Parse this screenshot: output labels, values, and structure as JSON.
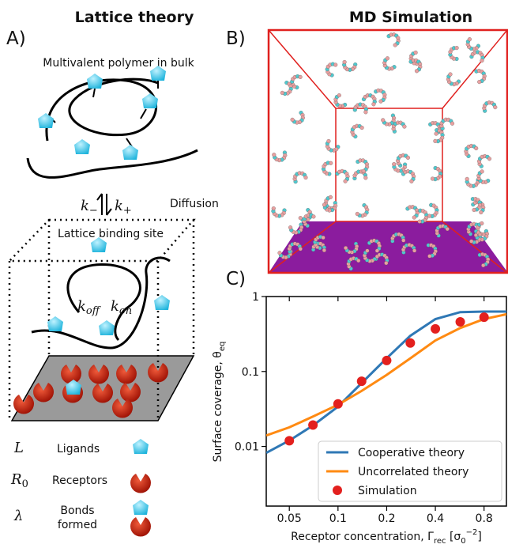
{
  "panel_a": {
    "title": "Lattice theory",
    "label": "A)",
    "bulk_label": "Multivalent polymer in bulk",
    "k_minus": [
      "k",
      "−"
    ],
    "k_plus": [
      "k",
      "+"
    ],
    "diffusion": "Diffusion",
    "site_label": "Lattice binding site",
    "k_off": [
      "k",
      "off"
    ],
    "k_on": [
      "k",
      "on"
    ],
    "legend": [
      {
        "symbol": [
          "L"
        ],
        "text": [
          "Ligands"
        ]
      },
      {
        "symbol": [
          "R",
          "0"
        ],
        "text": [
          "Receptors"
        ]
      },
      {
        "symbol": [
          "λ"
        ],
        "text": [
          "Bonds",
          "formed"
        ]
      }
    ]
  },
  "panel_b": {
    "title": "MD Simulation",
    "label": "B)"
  },
  "chart_data": {
    "type": "line",
    "label": "C)",
    "xlabel": [
      "Receptor concentration, Γ",
      "rec",
      " [σ",
      "0",
      "−2",
      "]"
    ],
    "ylabel": [
      "Surface coverage, θ",
      "eq"
    ],
    "log_x": true,
    "log_y": true,
    "xlim": [
      0.036,
      1.1
    ],
    "ylim": [
      0.0016,
      1
    ],
    "xticks": [
      0.05,
      0.1,
      0.2,
      0.4,
      0.8
    ],
    "yticks": [
      0.01,
      0.1,
      1
    ],
    "legend": "lower right",
    "series": [
      {
        "name": "Cooperative theory",
        "kind": "line",
        "color": "#2f78b5",
        "x": [
          0.036,
          0.05,
          0.07,
          0.1,
          0.14,
          0.2,
          0.28,
          0.4,
          0.57,
          0.8,
          1.1
        ],
        "values": [
          0.0082,
          0.012,
          0.019,
          0.034,
          0.07,
          0.15,
          0.3,
          0.5,
          0.62,
          0.63,
          0.63
        ]
      },
      {
        "name": "Uncorrelated theory",
        "kind": "line",
        "color": "#ff8a12",
        "x": [
          0.036,
          0.05,
          0.07,
          0.1,
          0.14,
          0.2,
          0.28,
          0.4,
          0.57,
          0.8,
          1.1
        ],
        "values": [
          0.014,
          0.018,
          0.025,
          0.036,
          0.055,
          0.09,
          0.15,
          0.26,
          0.38,
          0.5,
          0.58
        ]
      },
      {
        "name": "Simulation",
        "kind": "scatter",
        "color": "#e3201e",
        "x": [
          0.05,
          0.07,
          0.1,
          0.14,
          0.2,
          0.28,
          0.4,
          0.57,
          0.8
        ],
        "values": [
          0.0119,
          0.0193,
          0.037,
          0.074,
          0.14,
          0.24,
          0.37,
          0.46,
          0.53
        ]
      }
    ]
  }
}
